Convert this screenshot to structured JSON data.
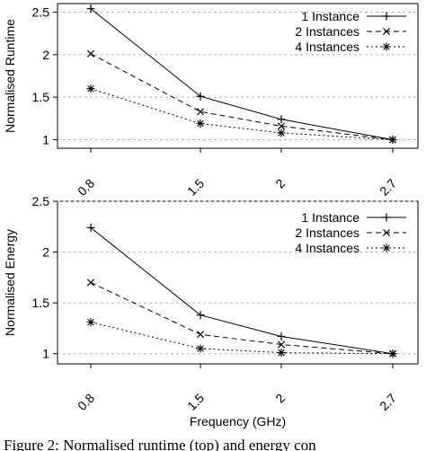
{
  "chart_data": [
    {
      "type": "line",
      "categories": [
        "0.8",
        "1.5",
        "2",
        "2.7"
      ],
      "ylabel": "Normalised Runtime",
      "xlabel": "",
      "ylim": [
        1,
        2.5
      ],
      "yticks": [
        "1",
        "1.5",
        "2",
        "2.5"
      ],
      "grid": "horizontal dashed",
      "legend_position": "top-right",
      "series": [
        {
          "name": "1 Instance",
          "marker": "+",
          "line": "solid",
          "values": [
            2.54,
            1.51,
            1.24,
            1.0
          ]
        },
        {
          "name": "2 Instances",
          "marker": "x",
          "line": "dashed",
          "values": [
            2.01,
            1.33,
            1.16,
            1.0
          ]
        },
        {
          "name": "4 Instances",
          "marker": "*",
          "line": "dotted",
          "values": [
            1.6,
            1.19,
            1.08,
            1.0
          ]
        }
      ]
    },
    {
      "type": "line",
      "categories": [
        "0.8",
        "1.5",
        "2",
        "2.7"
      ],
      "ylabel": "Normalised Energy",
      "xlabel": "Frequency (GHz)",
      "ylim": [
        1,
        2.5
      ],
      "yticks": [
        "1",
        "1.5",
        "2",
        "2.5"
      ],
      "grid": "horizontal dashed",
      "legend_position": "top-right",
      "series": [
        {
          "name": "1 Instance",
          "marker": "+",
          "line": "solid",
          "values": [
            2.24,
            1.38,
            1.17,
            1.0
          ]
        },
        {
          "name": "2 Instances",
          "marker": "x",
          "line": "dashed",
          "values": [
            1.7,
            1.19,
            1.09,
            1.0
          ]
        },
        {
          "name": "4 Instances",
          "marker": "*",
          "line": "dotted",
          "values": [
            1.31,
            1.05,
            1.01,
            1.0
          ]
        }
      ]
    }
  ],
  "caption": "Figure 2: Normalised runtime (top) and energy con"
}
